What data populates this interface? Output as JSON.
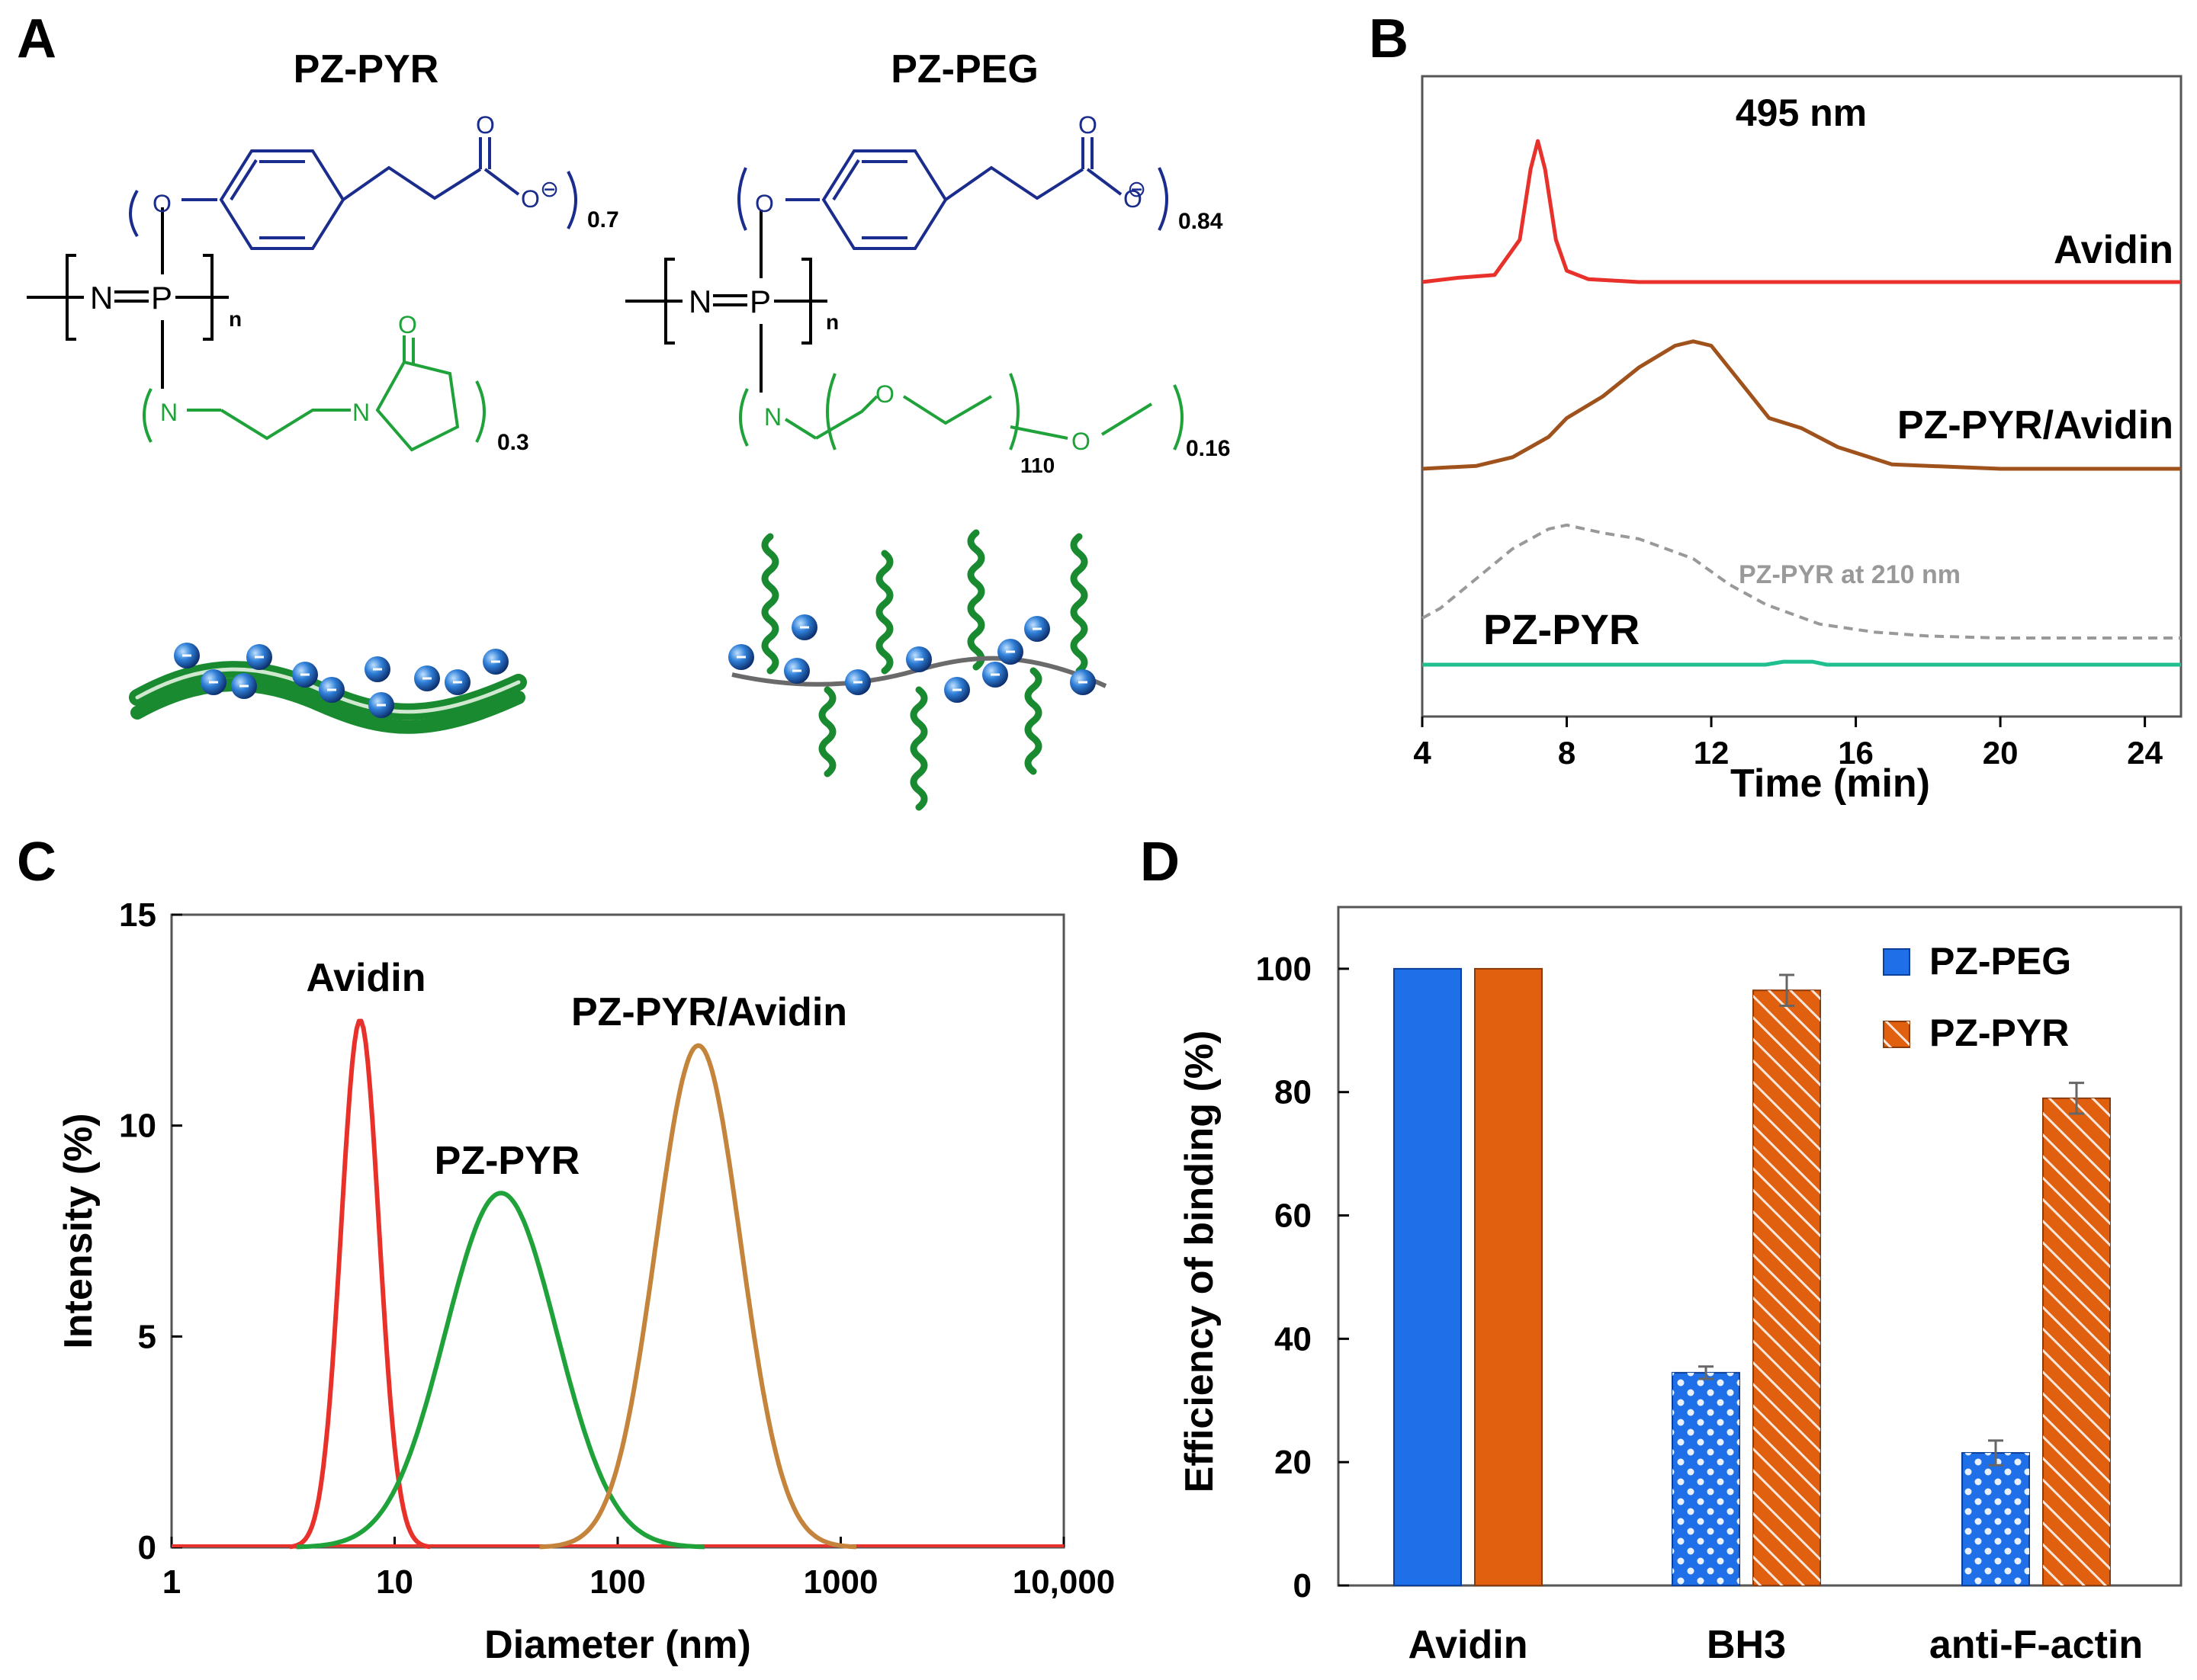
{
  "panels": {
    "a": "A",
    "b": "B",
    "c": "C",
    "d": "D"
  },
  "colors": {
    "blue_backbone": "#1a2c8c",
    "green_side": "#1fa23a",
    "avidin_red": "#e8312a",
    "complex_brown": "#a0521d",
    "complex_tan": "#c4843c",
    "pzpyr_green": "#20a040",
    "pzpyr_teal": "#1fbf8f",
    "bar_blue": "#1e6fe8",
    "bar_orange": "#e06010",
    "grey_dash": "#999999"
  },
  "panel_a": {
    "left": {
      "title": "PZ-PYR",
      "sub_acid": "0.7",
      "sub_side": "0.3",
      "n": "n",
      "atom_o": "O",
      "atom_n": "N",
      "atom_p": "P",
      "charge": "⊖"
    },
    "right": {
      "title": "PZ-PEG",
      "sub_acid": "0.84",
      "sub_side": "0.16",
      "sub_peg": "110",
      "n": "n"
    }
  },
  "chart_data": [
    {
      "type": "line",
      "title": "495 nm",
      "xlabel": "Time (min)",
      "ylabel": "",
      "xlim": [
        4,
        25
      ],
      "xticks": [
        "4",
        "8",
        "12",
        "16",
        "20",
        "24"
      ],
      "series": [
        {
          "name": "Avidin",
          "label": "Avidin",
          "color": "#e8312a",
          "offset": 2,
          "x": [
            4.0,
            5.0,
            6.0,
            6.7,
            7.0,
            7.2,
            7.4,
            7.7,
            8.0,
            8.6,
            10,
            14,
            17,
            20,
            25
          ],
          "y": [
            0.0,
            0.03,
            0.05,
            0.3,
            0.8,
            1.0,
            0.8,
            0.3,
            0.08,
            0.02,
            0.0,
            0.0,
            0.0,
            0.0,
            0.0
          ]
        },
        {
          "name": "PZ-PYR/Avidin",
          "label": "PZ-PYR/Avidin",
          "color": "#a0521d",
          "offset": 1,
          "x": [
            4.0,
            5.5,
            6.5,
            7.5,
            8.0,
            9.0,
            10.0,
            11.0,
            11.5,
            12.0,
            12.8,
            13.6,
            14.5,
            15.5,
            17,
            20,
            25
          ],
          "y": [
            0.0,
            0.02,
            0.08,
            0.22,
            0.35,
            0.5,
            0.7,
            0.85,
            0.88,
            0.85,
            0.6,
            0.35,
            0.28,
            0.15,
            0.03,
            0.0,
            0.0
          ]
        },
        {
          "name": "PZ-PYR at 210 nm",
          "label": "PZ-PYR at 210 nm",
          "color": "#999999",
          "offset": 0,
          "dashed": true,
          "x": [
            4.0,
            4.5,
            5.5,
            6.5,
            7.5,
            8.0,
            9.0,
            10.0,
            11.5,
            12.5,
            13.5,
            15.0,
            16.5,
            18,
            20,
            22,
            25
          ],
          "y": [
            0.15,
            0.2,
            0.35,
            0.5,
            0.6,
            0.62,
            0.58,
            0.55,
            0.45,
            0.32,
            0.22,
            0.12,
            0.08,
            0.06,
            0.05,
            0.05,
            0.05
          ]
        },
        {
          "name": "PZ-PYR",
          "label": "PZ-PYR",
          "color": "#1fbf8f",
          "offset": -0.05,
          "x": [
            4.0,
            13.5,
            14.0,
            14.8,
            15.2,
            25
          ],
          "y": [
            0.0,
            0.0,
            0.015,
            0.015,
            0.0,
            0.0
          ]
        }
      ]
    },
    {
      "type": "line",
      "title": "",
      "xlabel": "Diameter (nm)",
      "ylabel": "Intensity (%)",
      "xscale": "log",
      "xlim": [
        1,
        10000
      ],
      "ylim": [
        0,
        15
      ],
      "xticks": [
        "1",
        "10",
        "100",
        "1000",
        "10,000"
      ],
      "yticks": [
        "0",
        "5",
        "10",
        "15"
      ],
      "series": [
        {
          "name": "Avidin",
          "color": "#e8312a",
          "peak_x": 7,
          "peak_y": 12.5,
          "sigma_log10": 0.085
        },
        {
          "name": "PZ-PYR",
          "color": "#1fa23a",
          "peak_x": 30,
          "peak_y": 8.4,
          "sigma_log10": 0.25
        },
        {
          "name": "PZ-PYR/Avidin",
          "color": "#c4843c",
          "peak_x": 230,
          "peak_y": 11.9,
          "sigma_log10": 0.19
        }
      ]
    },
    {
      "type": "bar",
      "title": "",
      "xlabel": "",
      "ylabel": "Efficiency of binding (%)",
      "ylim": [
        0,
        110
      ],
      "yticks": [
        "0",
        "20",
        "40",
        "60",
        "80",
        "100"
      ],
      "categories": [
        "Avidin",
        "BH3",
        "anti-F-actin"
      ],
      "series": [
        {
          "name": "PZ-PEG",
          "color": "#1e6fe8",
          "values": [
            100,
            34.5,
            21.5
          ],
          "errors": [
            0,
            1,
            2
          ]
        },
        {
          "name": "PZ-PYR",
          "color": "#e06010",
          "values": [
            100,
            96.5,
            79
          ],
          "errors": [
            0,
            2.5,
            2.5
          ]
        }
      ]
    }
  ]
}
